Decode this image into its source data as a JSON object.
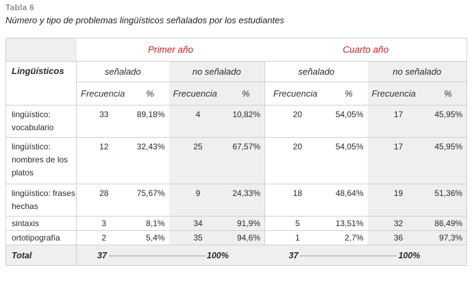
{
  "caption": {
    "label": "Tabla 6",
    "title": "Número y tipo de problemas lingüísticos señalados por los estudiantes"
  },
  "header": {
    "row_label": "Lingüísticos",
    "groups": [
      "Primer año",
      "Cuarto año"
    ],
    "subgroups": [
      "señalado",
      "no señalado",
      "señalado",
      "no señalado"
    ],
    "col_freq": "Frecuencia",
    "col_pct": "%"
  },
  "rows": [
    {
      "label": "lingüístico: vocabulario",
      "values": [
        "33",
        "89,18%",
        "4",
        "10,82%",
        "20",
        "54,05%",
        "17",
        "45,95%"
      ]
    },
    {
      "label": "lingüístico: nombres de los platos",
      "values": [
        "12",
        "32,43%",
        "25",
        "67,57%",
        "20",
        "54,05%",
        "17",
        "45,95%"
      ]
    },
    {
      "label": "lingüístico: frases hechas",
      "values": [
        "28",
        "75,67%",
        "9",
        "24,33%",
        "18",
        "48,64%",
        "19",
        "51,36%"
      ]
    },
    {
      "label": "sintaxis",
      "values": [
        "3",
        "8,1%",
        "34",
        "91,9%",
        "5",
        "13,51%",
        "32",
        "86,49%"
      ]
    },
    {
      "label": "ortotipografía",
      "values": [
        "2",
        "5,4%",
        "35",
        "94,6%",
        "1",
        "2,7%",
        "36",
        "97,3%"
      ]
    }
  ],
  "total": {
    "label": "Total",
    "primer_n": "37",
    "primer_pct": "100%",
    "cuarto_n": "37",
    "cuarto_pct": "100%"
  }
}
